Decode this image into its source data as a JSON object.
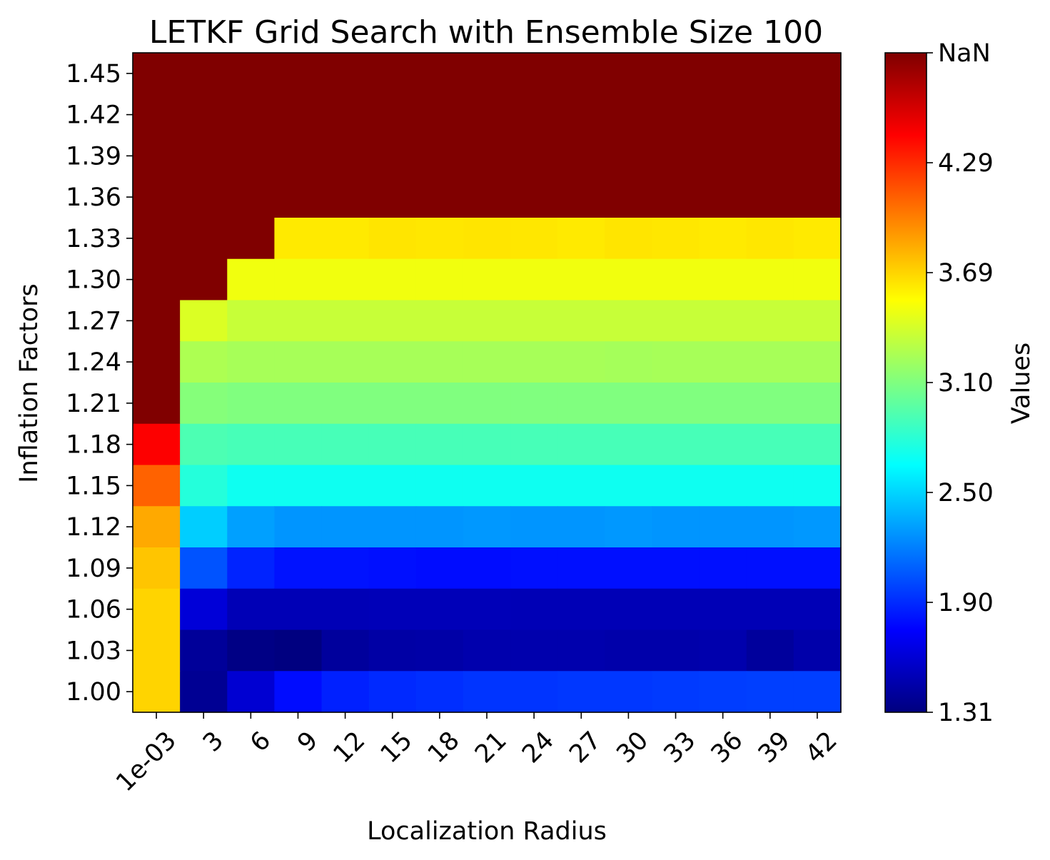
{
  "chart_data": {
    "type": "heatmap",
    "title": "LETKF Grid Search with Ensemble Size 100",
    "xlabel": "Localization Radius",
    "ylabel": "Inflation Factors",
    "x": [
      "1e-03",
      "3",
      "6",
      "9",
      "12",
      "15",
      "18",
      "21",
      "24",
      "27",
      "30",
      "33",
      "36",
      "39",
      "42"
    ],
    "y": [
      "1.45",
      "1.42",
      "1.39",
      "1.36",
      "1.33",
      "1.30",
      "1.27",
      "1.24",
      "1.21",
      "1.18",
      "1.15",
      "1.12",
      "1.09",
      "1.06",
      "1.03",
      "1.00"
    ],
    "nan_label": "NaN",
    "colorbar": {
      "label": "Values",
      "min": 1.31,
      "max": 4.89,
      "ticks": [
        "1.31",
        "1.90",
        "2.50",
        "3.10",
        "3.69",
        "4.29",
        "NaN"
      ],
      "colormap": "jet"
    },
    "values": [
      [
        null,
        null,
        null,
        null,
        null,
        null,
        null,
        null,
        null,
        null,
        null,
        null,
        null,
        null,
        null
      ],
      [
        null,
        null,
        null,
        null,
        null,
        null,
        null,
        null,
        null,
        null,
        null,
        null,
        null,
        null,
        null
      ],
      [
        null,
        null,
        null,
        null,
        null,
        null,
        null,
        null,
        null,
        null,
        null,
        null,
        null,
        null,
        null
      ],
      [
        null,
        null,
        null,
        null,
        null,
        null,
        null,
        null,
        null,
        null,
        null,
        null,
        null,
        null,
        null
      ],
      [
        null,
        null,
        null,
        3.62,
        3.62,
        3.64,
        3.63,
        3.64,
        3.63,
        3.62,
        3.64,
        3.63,
        3.62,
        3.63,
        3.62
      ],
      [
        null,
        null,
        3.5,
        3.5,
        3.5,
        3.5,
        3.5,
        3.5,
        3.5,
        3.5,
        3.5,
        3.5,
        3.5,
        3.5,
        3.5
      ],
      [
        null,
        3.42,
        3.35,
        3.35,
        3.35,
        3.35,
        3.35,
        3.35,
        3.35,
        3.35,
        3.35,
        3.35,
        3.35,
        3.35,
        3.35
      ],
      [
        null,
        3.26,
        3.24,
        3.24,
        3.24,
        3.24,
        3.24,
        3.24,
        3.24,
        3.24,
        3.23,
        3.24,
        3.24,
        3.24,
        3.24
      ],
      [
        null,
        3.12,
        3.1,
        3.1,
        3.1,
        3.1,
        3.1,
        3.1,
        3.1,
        3.1,
        3.1,
        3.1,
        3.1,
        3.1,
        3.1
      ],
      [
        4.45,
        2.92,
        2.9,
        2.9,
        2.9,
        2.9,
        2.9,
        2.9,
        2.9,
        2.9,
        2.9,
        2.9,
        2.9,
        2.9,
        2.9
      ],
      [
        4.1,
        2.78,
        2.7,
        2.7,
        2.7,
        2.7,
        2.7,
        2.7,
        2.7,
        2.7,
        2.7,
        2.7,
        2.7,
        2.7,
        2.7
      ],
      [
        3.85,
        2.48,
        2.32,
        2.28,
        2.28,
        2.28,
        2.28,
        2.29,
        2.28,
        2.28,
        2.29,
        2.28,
        2.28,
        2.28,
        2.29
      ],
      [
        3.75,
        2.05,
        1.88,
        1.82,
        1.82,
        1.81,
        1.8,
        1.8,
        1.81,
        1.81,
        1.81,
        1.81,
        1.81,
        1.81,
        1.81
      ],
      [
        3.7,
        1.62,
        1.5,
        1.5,
        1.5,
        1.51,
        1.51,
        1.51,
        1.5,
        1.5,
        1.5,
        1.5,
        1.5,
        1.5,
        1.5
      ],
      [
        3.7,
        1.4,
        1.33,
        1.31,
        1.41,
        1.44,
        1.45,
        1.47,
        1.47,
        1.47,
        1.46,
        1.46,
        1.47,
        1.41,
        1.46
      ],
      [
        3.7,
        1.38,
        1.6,
        1.8,
        1.87,
        1.9,
        1.92,
        1.94,
        1.94,
        1.95,
        1.95,
        1.96,
        1.97,
        1.98,
        1.98
      ]
    ]
  }
}
